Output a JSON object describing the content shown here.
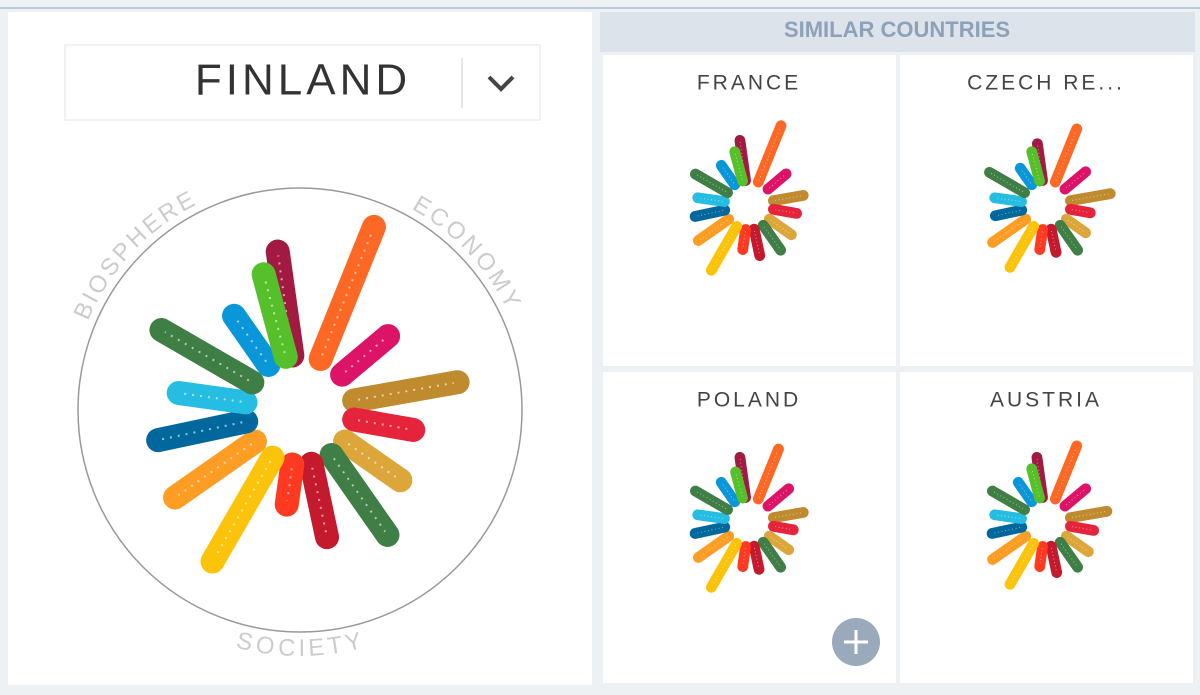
{
  "header": {
    "country": "FINLAND"
  },
  "main_chart": {
    "type": "radial-bar",
    "section_labels": [
      "BIOSPHERE",
      "ECONOMY",
      "SOCIETY"
    ],
    "angles": [
      -8,
      22,
      50,
      80,
      100,
      125,
      145,
      168,
      188,
      210,
      235,
      258,
      278,
      300,
      325,
      345
    ],
    "colors": [
      "#a21942",
      "#fd6925",
      "#dd1367",
      "#bf8b2e",
      "#e5243b",
      "#dda63a",
      "#3f7e44",
      "#c5192d",
      "#ff3a21",
      "#fcc30b",
      "#fd9d24",
      "#00689d",
      "#26bde2",
      "#3f7e44",
      "#0a97d9",
      "#56c02b"
    ],
    "values": [
      70,
      95,
      40,
      70,
      40,
      45,
      65,
      50,
      27,
      80,
      65,
      60,
      45,
      70,
      40,
      57
    ]
  },
  "similar": {
    "title": "SIMILAR COUNTRIES",
    "countries": [
      {
        "name": "FRANCE",
        "values": [
          60,
          90,
          35,
          45,
          35,
          40,
          45,
          40,
          30,
          75,
          55,
          45,
          40,
          55,
          35,
          45
        ]
      },
      {
        "name": "CZECH RE...",
        "values": [
          55,
          85,
          40,
          60,
          30,
          35,
          45,
          35,
          30,
          70,
          60,
          40,
          40,
          60,
          30,
          45
        ]
      },
      {
        "name": "POLAND",
        "values": [
          60,
          80,
          40,
          45,
          30,
          35,
          45,
          35,
          30,
          75,
          55,
          45,
          40,
          55,
          35,
          40
        ]
      },
      {
        "name": "AUSTRIA",
        "values": [
          60,
          85,
          40,
          55,
          35,
          40,
          45,
          40,
          30,
          70,
          60,
          45,
          40,
          55,
          35,
          45
        ]
      }
    ]
  }
}
